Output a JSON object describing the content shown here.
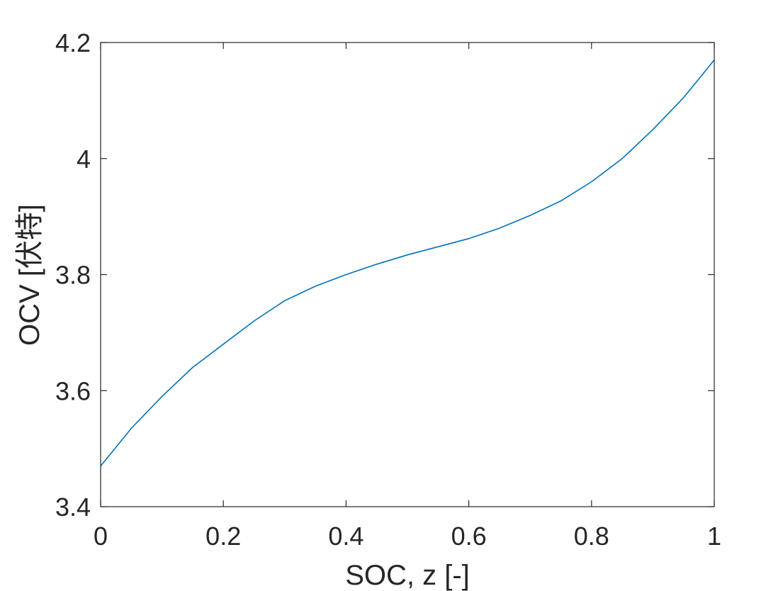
{
  "chart_data": {
    "type": "line",
    "xlabel": "SOC, z [-]",
    "ylabel": "OCV [伏特]",
    "xlim": [
      0,
      1
    ],
    "ylim": [
      3.4,
      4.2
    ],
    "xticks": [
      "0",
      "0.2",
      "0.4",
      "0.6",
      "0.8",
      "1"
    ],
    "yticks": [
      "3.4",
      "3.6",
      "3.8",
      "4",
      "4.2"
    ],
    "grid": false,
    "series": [
      {
        "color": "#0072BD",
        "x": [
          0,
          0.05,
          0.1,
          0.15,
          0.2,
          0.25,
          0.3,
          0.35,
          0.4,
          0.45,
          0.5,
          0.55,
          0.6,
          0.65,
          0.7,
          0.75,
          0.8,
          0.85,
          0.9,
          0.95,
          1.0
        ],
        "y": [
          3.47,
          3.535,
          3.59,
          3.64,
          3.68,
          3.72,
          3.755,
          3.78,
          3.8,
          3.818,
          3.834,
          3.848,
          3.862,
          3.88,
          3.902,
          3.927,
          3.96,
          4.0,
          4.05,
          4.105,
          4.17
        ]
      }
    ]
  }
}
